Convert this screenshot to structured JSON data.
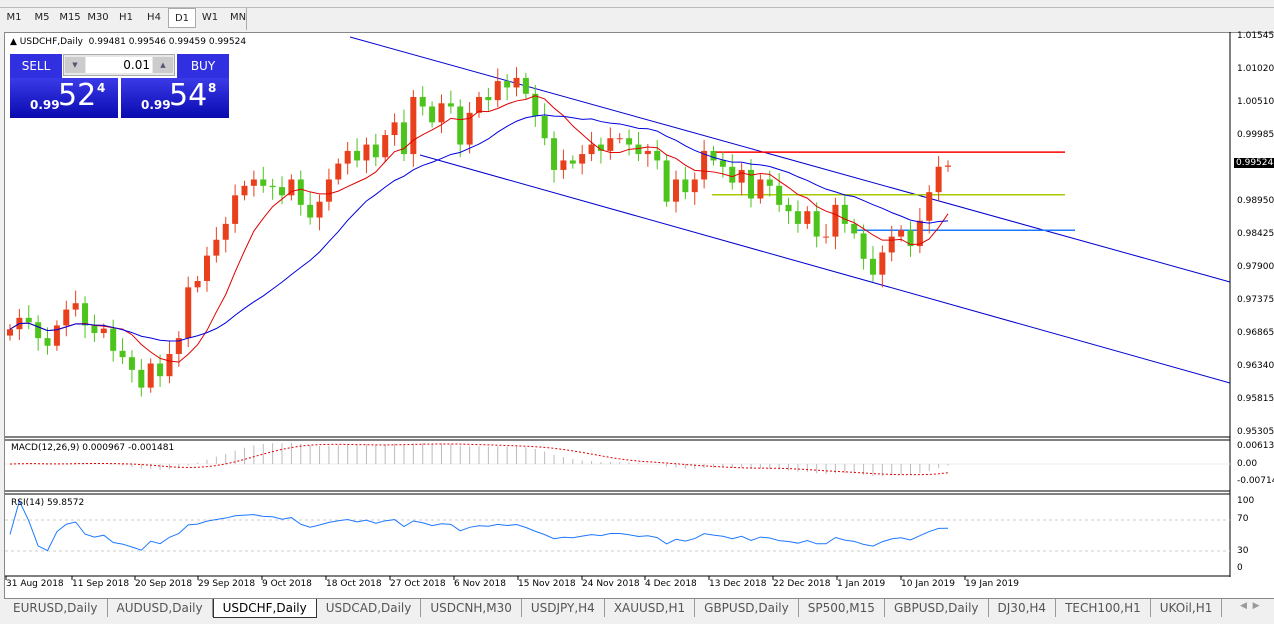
{
  "timeframes": [
    "M1",
    "M5",
    "M15",
    "M30",
    "H1",
    "H4",
    "D1",
    "W1",
    "MN"
  ],
  "active_timeframe": "D1",
  "header": {
    "symbol": "USDCHF,Daily",
    "ohlc": "0.99481 0.99546 0.99459 0.99524"
  },
  "trade_panel": {
    "sell_label": "SELL",
    "buy_label": "BUY",
    "lot": "0.01",
    "sell_prefix": "0.99",
    "sell_big": "52",
    "sell_sup": "4",
    "buy_prefix": "0.99",
    "buy_big": "54",
    "buy_sup": "8"
  },
  "price_axis": [
    "1.01545",
    "1.01020",
    "1.00510",
    "0.99985",
    "0.98950",
    "0.98425",
    "0.97900",
    "0.97375",
    "0.96865",
    "0.96340",
    "0.95815",
    "0.95305"
  ],
  "current_price": "0.99524",
  "macd": {
    "label": "MACD(12,26,9) 0.000967 -0.001481",
    "axis": [
      "0.006137",
      "0.00",
      "-0.007142"
    ]
  },
  "rsi": {
    "label": "RSI(14) 59.8572",
    "axis": [
      "100",
      "70",
      "30",
      "0"
    ]
  },
  "date_axis": [
    "31 Aug 2018",
    "11 Sep 2018",
    "20 Sep 2018",
    "29 Sep 2018",
    "9 Oct 2018",
    "18 Oct 2018",
    "27 Oct 2018",
    "6 Nov 2018",
    "15 Nov 2018",
    "24 Nov 2018",
    "4 Dec 2018",
    "13 Dec 2018",
    "22 Dec 2018",
    "1 Jan 2019",
    "10 Jan 2019",
    "19 Jan 2019"
  ],
  "tabs": [
    "EURUSD,Daily",
    "AUDUSD,Daily",
    "USDCHF,Daily",
    "USDCAD,Daily",
    "USDCNH,M30",
    "USDJPY,H4",
    "XAUUSD,H1",
    "GBPUSD,Daily",
    "SP500,M15",
    "GBPUSD,Daily",
    "DJ30,H4",
    "TECH100,H1",
    "UKOil,H1"
  ],
  "active_tab": "USDCHF,Daily",
  "colors": {
    "bull": "#e8401c",
    "bear": "#4cc41c",
    "ma_fast": "#e00000",
    "ma_slow": "#0000e0",
    "channel": "#0000d0",
    "level_red": "#ff0000",
    "level_yellow": "#a8c800",
    "level_blue": "#1e78ff",
    "rsi": "#1e78ff"
  },
  "chart_data": {
    "type": "candlestick",
    "ylim": [
      0.95305,
      1.01545
    ],
    "closes": [
      0.9694,
      0.9712,
      0.9705,
      0.968,
      0.9668,
      0.97,
      0.9725,
      0.9735,
      0.97,
      0.9688,
      0.9695,
      0.966,
      0.965,
      0.963,
      0.9602,
      0.964,
      0.962,
      0.9655,
      0.968,
      0.976,
      0.977,
      0.981,
      0.9835,
      0.986,
      0.9905,
      0.992,
      0.993,
      0.992,
      0.9918,
      0.9905,
      0.993,
      0.989,
      0.987,
      0.9895,
      0.993,
      0.9955,
      0.9975,
      0.996,
      0.9985,
      0.9965,
      1.0,
      1.002,
      0.997,
      1.006,
      1.0045,
      1.002,
      1.005,
      1.0045,
      0.9985,
      1.0035,
      1.006,
      1.0055,
      1.0085,
      1.0075,
      1.009,
      1.0065,
      1.003,
      0.9995,
      0.9945,
      0.996,
      0.9955,
      0.997,
      0.9985,
      0.9975,
      0.9995,
      0.9995,
      0.9985,
      0.997,
      0.9975,
      0.996,
      0.9895,
      0.993,
      0.991,
      0.993,
      0.9975,
      0.996,
      0.995,
      0.9925,
      0.9945,
      0.99,
      0.993,
      0.992,
      0.989,
      0.988,
      0.986,
      0.988,
      0.984,
      0.984,
      0.989,
      0.986,
      0.9845,
      0.9805,
      0.978,
      0.9815,
      0.984,
      0.985,
      0.9825,
      0.9865,
      0.991,
      0.995,
      0.9952
    ],
    "levels": [
      0.9973,
      0.9906,
      0.985
    ]
  }
}
